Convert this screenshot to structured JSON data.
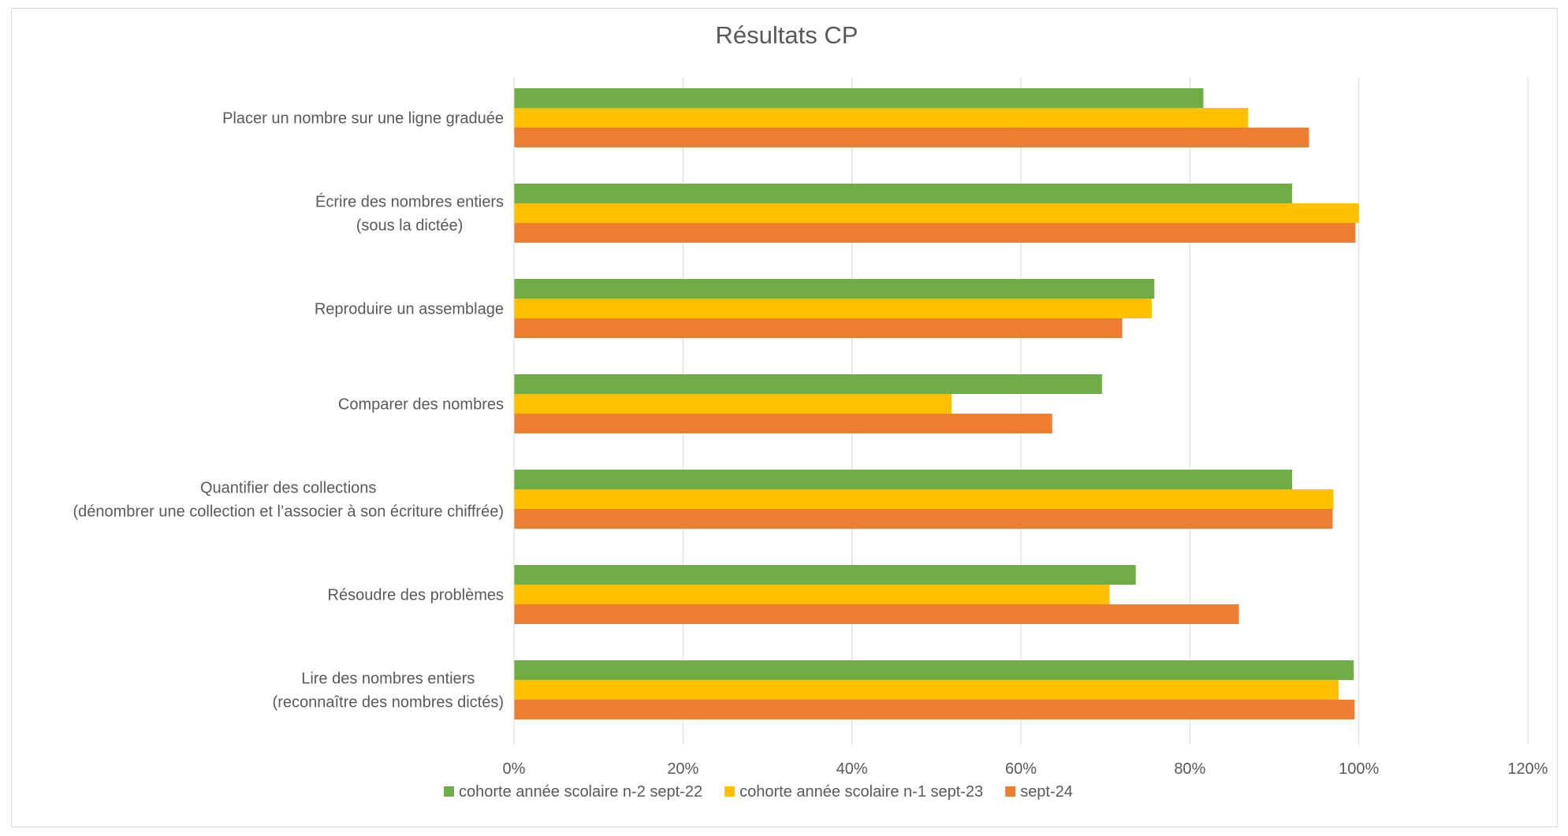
{
  "chart_data": {
    "type": "bar",
    "orientation": "horizontal",
    "title": "Résultats CP",
    "xlabel": "",
    "ylabel": "",
    "xlim": [
      0,
      120
    ],
    "x_ticks": [
      "0%",
      "20%",
      "40%",
      "60%",
      "80%",
      "100%",
      "120%"
    ],
    "x_tick_values": [
      0,
      20,
      40,
      60,
      80,
      100,
      120
    ],
    "grid": "vertical",
    "legend_position": "bottom",
    "categories": [
      [
        "Placer un nombre sur une ligne graduée"
      ],
      [
        "Écrire des nombres entiers",
        "(sous la dictée)"
      ],
      [
        "Reproduire un assemblage"
      ],
      [
        "Comparer des nombres"
      ],
      [
        "Quantifier des collections",
        "(dénombrer une collection et l’associer à son écriture chiffrée)"
      ],
      [
        "Résoudre des problèmes"
      ],
      [
        "Lire des nombres entiers",
        "(reconnaître des nombres dictés)"
      ]
    ],
    "series": [
      {
        "name": "cohorte année scolaire n-2 sept-22",
        "color": "#70AD47",
        "values": [
          81.6,
          92.1,
          75.8,
          69.6,
          92.1,
          73.6,
          99.4
        ]
      },
      {
        "name": "cohorte année scolaire n-1 sept-23",
        "color": "#FFC000",
        "values": [
          86.9,
          100,
          75.5,
          51.8,
          97.0,
          70.5,
          97.6
        ]
      },
      {
        "name": "sept-24",
        "color": "#ED7D31",
        "values": [
          94.1,
          99.6,
          72.0,
          63.7,
          96.9,
          85.8,
          99.5
        ]
      }
    ]
  }
}
